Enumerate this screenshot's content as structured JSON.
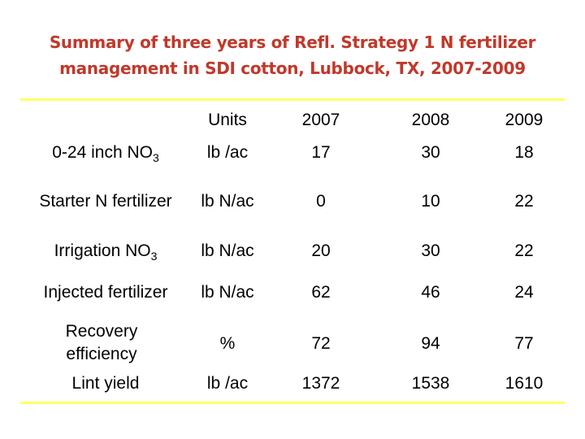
{
  "title": {
    "line1": "Summary of three years of Refl. Strategy 1 N fertilizer",
    "line2": "management  in SDI cotton, Lubbock, TX, 2007-2009"
  },
  "colors": {
    "title": "#c0392b",
    "rule": "#ffff66"
  },
  "table": {
    "header": {
      "units": "Units",
      "y2007": "2007",
      "y2008": "2008",
      "y2009": "2009"
    },
    "rows": [
      {
        "label": "0-24 inch NO",
        "sub": "3",
        "units": "lb /ac",
        "v2007": "17",
        "v2008": "30",
        "v2009": "18"
      },
      {
        "label": "Starter N fertilizer",
        "units": "lb N/ac",
        "v2007": "0",
        "v2008": "10",
        "v2009": "22"
      },
      {
        "label": "Irrigation NO",
        "sub": "3",
        "units": "lb N/ac",
        "v2007": "20",
        "v2008": "30",
        "v2009": "22"
      },
      {
        "label": "Injected fertilizer",
        "units": "lb N/ac",
        "v2007": "62",
        "v2008": "46",
        "v2009": "24"
      },
      {
        "label": "Recovery efficiency",
        "units": "%",
        "v2007": "72",
        "v2008": "94",
        "v2009": "77"
      },
      {
        "label": "Lint yield",
        "units": "lb /ac",
        "v2007": "1372",
        "v2008": "1538",
        "v2009": "1610"
      }
    ]
  }
}
